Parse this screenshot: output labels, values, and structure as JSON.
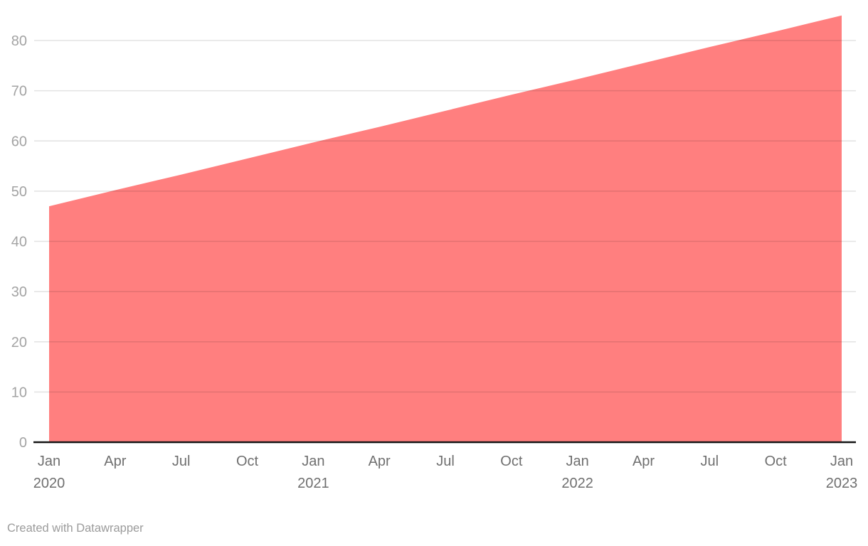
{
  "footer": {
    "attribution": "Created with Datawrapper"
  },
  "colors": {
    "area": "#ff7f7f",
    "gridline": "rgba(20,20,20,0.12)",
    "axis_line": "#141414",
    "y_label": "#a3a3a3",
    "x_label": "#6f6f6f",
    "attribution_text": "#9b9b9b",
    "background": "#ffffff"
  },
  "chart_data": {
    "type": "area",
    "title": "",
    "xlabel": "",
    "ylabel": "",
    "legend": "none",
    "grid": "horizontal",
    "x": [
      "2020-01",
      "2020-04",
      "2020-07",
      "2020-10",
      "2021-01",
      "2021-04",
      "2021-07",
      "2021-10",
      "2022-01",
      "2022-04",
      "2022-07",
      "2022-10",
      "2023-01"
    ],
    "values": [
      47,
      50.2,
      53.3,
      56.5,
      59.7,
      62.8,
      66,
      69.2,
      72.3,
      75.5,
      78.7,
      81.8,
      85
    ],
    "trend": {
      "start_label": "Jan 2020",
      "start_value": 47,
      "end_label": "Jan 2023",
      "end_value": 85
    },
    "y_ticks": [
      0,
      10,
      20,
      30,
      40,
      50,
      60,
      70,
      80
    ],
    "ylim": [
      0,
      85
    ],
    "x_tick_labels": [
      {
        "month": "Jan",
        "year": "2020"
      },
      {
        "month": "Apr"
      },
      {
        "month": "Jul"
      },
      {
        "month": "Oct"
      },
      {
        "month": "Jan",
        "year": "2021"
      },
      {
        "month": "Apr"
      },
      {
        "month": "Jul"
      },
      {
        "month": "Oct"
      },
      {
        "month": "Jan",
        "year": "2022"
      },
      {
        "month": "Apr"
      },
      {
        "month": "Jul"
      },
      {
        "month": "Oct"
      },
      {
        "month": "Jan",
        "year": "2023"
      }
    ]
  }
}
